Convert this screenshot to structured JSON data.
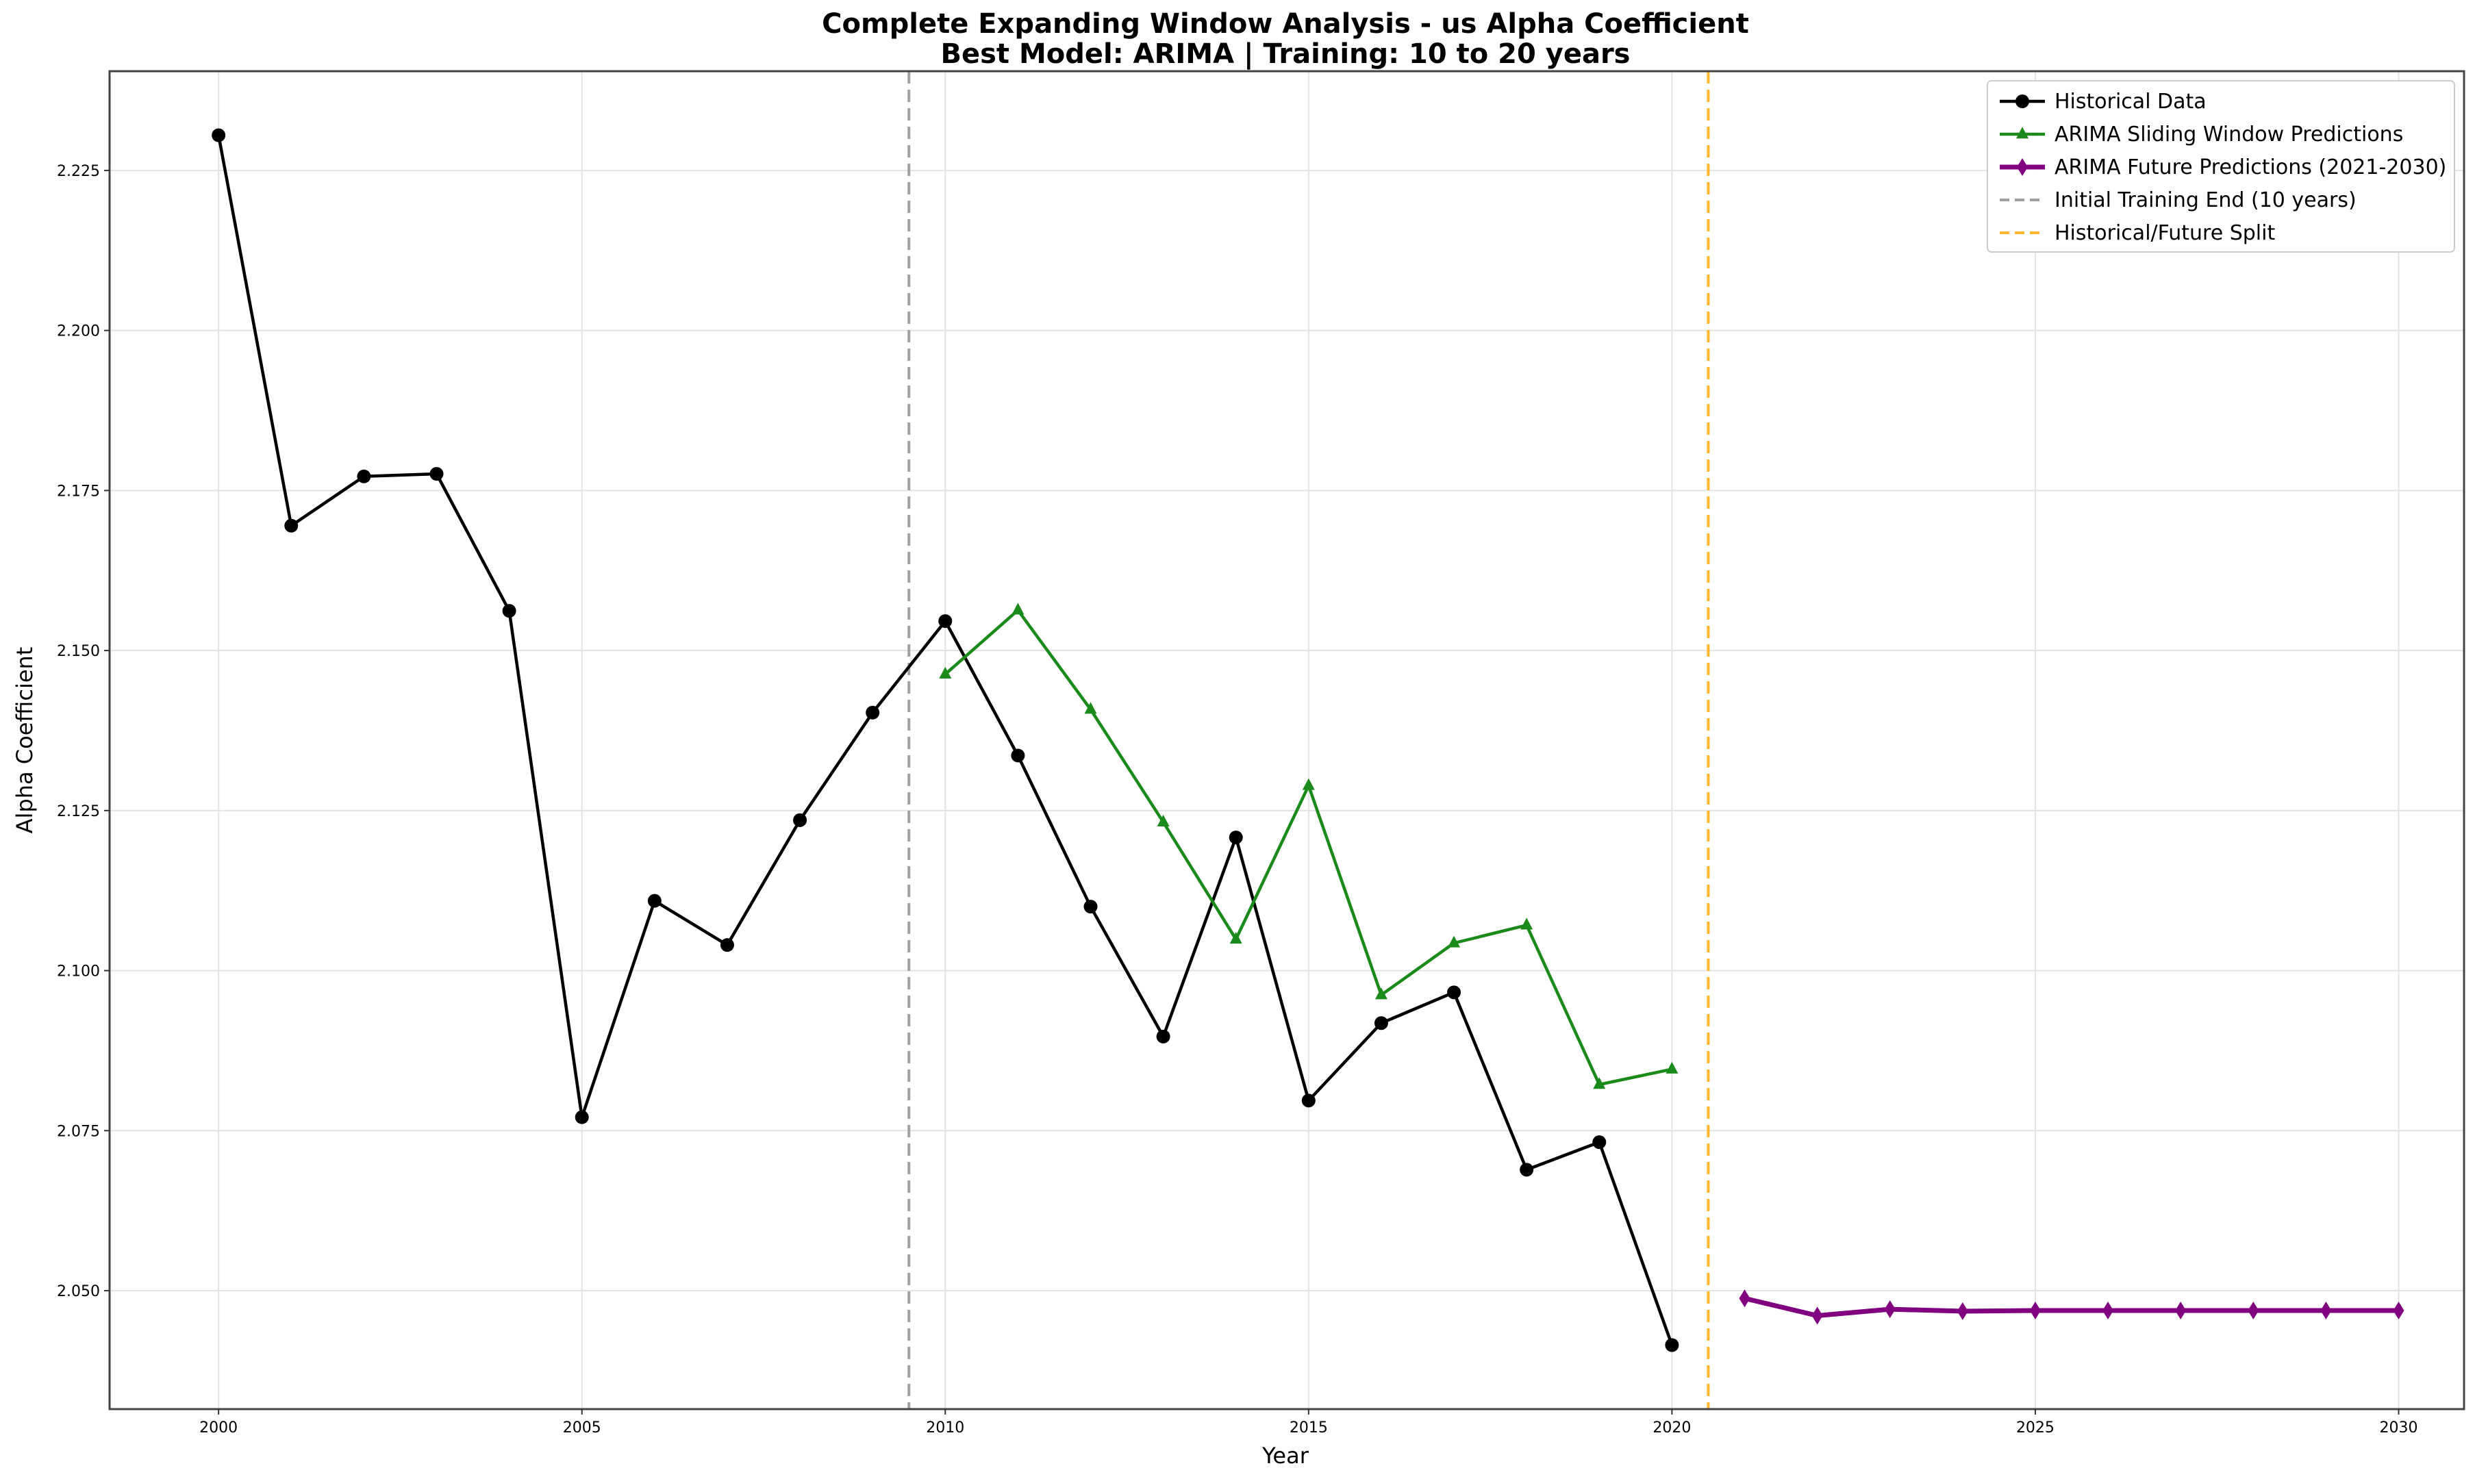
{
  "chart_data": {
    "type": "line",
    "title": "Complete Expanding Window Analysis - us Alpha Coefficient",
    "subtitle": "Best Model: ARIMA | Training: 10 to 20 years",
    "xlabel": "Year",
    "ylabel": "Alpha Coefficient",
    "xlim": [
      1998.5,
      2030.9
    ],
    "ylim": [
      2.0315,
      2.2405
    ],
    "xticks": [
      2000,
      2005,
      2010,
      2015,
      2020,
      2025,
      2030
    ],
    "yticks": [
      2.05,
      2.075,
      2.1,
      2.125,
      2.15,
      2.175,
      2.2,
      2.225
    ],
    "ytick_labels": [
      "2.050",
      "2.075",
      "2.100",
      "2.125",
      "2.150",
      "2.175",
      "2.200",
      "2.225"
    ],
    "grid": true,
    "legend_position": "top-right",
    "series": [
      {
        "name": "Historical Data",
        "color": "#000000",
        "marker": "circle",
        "x": [
          2000,
          2001,
          2002,
          2003,
          2004,
          2005,
          2006,
          2007,
          2008,
          2009,
          2010,
          2011,
          2012,
          2013,
          2014,
          2015,
          2016,
          2017,
          2018,
          2019,
          2020
        ],
        "y": [
          2.2305,
          2.1695,
          2.1772,
          2.1776,
          2.1562,
          2.0771,
          2.1109,
          2.104,
          2.1235,
          2.1403,
          2.1546,
          2.1336,
          2.11,
          2.0897,
          2.1208,
          2.0797,
          2.0918,
          2.0966,
          2.0689,
          2.0732,
          2.0415
        ]
      },
      {
        "name": "ARIMA Sliding Window Predictions",
        "color": "#1a8a1a",
        "marker": "triangle",
        "x": [
          2010,
          2011,
          2012,
          2013,
          2014,
          2015,
          2016,
          2017,
          2018,
          2019,
          2020
        ],
        "y": [
          2.1463,
          2.1563,
          2.1408,
          2.1232,
          2.1049,
          2.1289,
          2.0962,
          2.1043,
          2.1071,
          2.0822,
          2.0846
        ]
      },
      {
        "name": "ARIMA Future Predictions (2021-2030)",
        "color": "#800080",
        "marker": "diamond",
        "x": [
          2021,
          2022,
          2023,
          2024,
          2025,
          2026,
          2027,
          2028,
          2029,
          2030
        ],
        "y": [
          2.0488,
          2.0461,
          2.0471,
          2.0468,
          2.0469,
          2.0469,
          2.0469,
          2.0469,
          2.0469,
          2.0469
        ]
      }
    ],
    "vertical_lines": [
      {
        "name": "Initial Training End (10 years)",
        "x": 2009.5,
        "color": "#a0a0a0"
      },
      {
        "name": "Historical/Future Split",
        "x": 2020.5,
        "color": "#ffb52e"
      }
    ]
  }
}
